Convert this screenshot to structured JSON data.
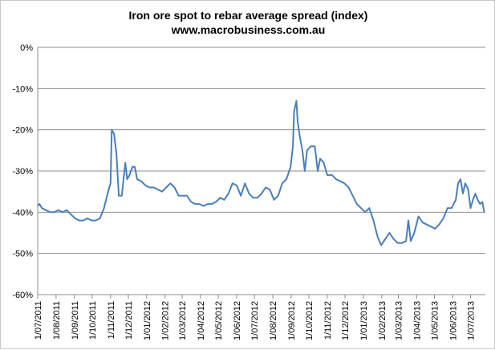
{
  "chart_data": {
    "type": "line",
    "title": "Iron ore spot to rebar average spread (index)",
    "subtitle": "www.macrobusiness.com.au",
    "xlabel": "",
    "ylabel": "",
    "ylim": [
      -0.6,
      0.0
    ],
    "y_ticks": [
      "0%",
      "-10%",
      "-20%",
      "-30%",
      "-40%",
      "-50%",
      "-60%"
    ],
    "x_ticks": [
      "1/07/2011",
      "1/08/2011",
      "1/09/2011",
      "1/10/2011",
      "1/11/2011",
      "1/12/2011",
      "1/01/2012",
      "1/02/2012",
      "1/03/2012",
      "1/04/2012",
      "1/05/2012",
      "1/06/2012",
      "1/07/2012",
      "1/08/2012",
      "1/09/2012",
      "1/10/2012",
      "1/11/2012",
      "1/12/2012",
      "1/01/2013",
      "1/02/2013",
      "1/03/2013",
      "1/04/2013",
      "1/05/2013",
      "1/06/2013",
      "1/07/2013"
    ],
    "grid": "horizontal",
    "legend": "none",
    "line_color": "#4a7ebb",
    "series": [
      {
        "points": [
          [
            "2011-07-01",
            -0.385
          ],
          [
            "2011-07-04",
            -0.38
          ],
          [
            "2011-07-08",
            -0.39
          ],
          [
            "2011-07-15",
            -0.395
          ],
          [
            "2011-07-22",
            -0.4
          ],
          [
            "2011-07-29",
            -0.4
          ],
          [
            "2011-08-05",
            -0.395
          ],
          [
            "2011-08-12",
            -0.4
          ],
          [
            "2011-08-19",
            -0.395
          ],
          [
            "2011-08-26",
            -0.405
          ],
          [
            "2011-09-02",
            -0.415
          ],
          [
            "2011-09-09",
            -0.42
          ],
          [
            "2011-09-16",
            -0.42
          ],
          [
            "2011-09-23",
            -0.415
          ],
          [
            "2011-09-30",
            -0.42
          ],
          [
            "2011-10-07",
            -0.42
          ],
          [
            "2011-10-14",
            -0.415
          ],
          [
            "2011-10-21",
            -0.39
          ],
          [
            "2011-10-26",
            -0.36
          ],
          [
            "2011-10-30",
            -0.34
          ],
          [
            "2011-11-01",
            -0.33
          ],
          [
            "2011-11-03",
            -0.2
          ],
          [
            "2011-11-07",
            -0.21
          ],
          [
            "2011-11-11",
            -0.26
          ],
          [
            "2011-11-15",
            -0.36
          ],
          [
            "2011-11-20",
            -0.36
          ],
          [
            "2011-11-26",
            -0.28
          ],
          [
            "2011-11-29",
            -0.32
          ],
          [
            "2011-12-03",
            -0.31
          ],
          [
            "2011-12-08",
            -0.29
          ],
          [
            "2011-12-12",
            -0.29
          ],
          [
            "2011-12-16",
            -0.32
          ],
          [
            "2011-12-23",
            -0.325
          ],
          [
            "2011-12-30",
            -0.335
          ],
          [
            "2012-01-06",
            -0.34
          ],
          [
            "2012-01-13",
            -0.34
          ],
          [
            "2012-01-20",
            -0.345
          ],
          [
            "2012-01-27",
            -0.35
          ],
          [
            "2012-02-03",
            -0.34
          ],
          [
            "2012-02-10",
            -0.33
          ],
          [
            "2012-02-17",
            -0.34
          ],
          [
            "2012-02-24",
            -0.36
          ],
          [
            "2012-03-02",
            -0.36
          ],
          [
            "2012-03-09",
            -0.36
          ],
          [
            "2012-03-16",
            -0.375
          ],
          [
            "2012-03-23",
            -0.38
          ],
          [
            "2012-03-30",
            -0.38
          ],
          [
            "2012-04-06",
            -0.385
          ],
          [
            "2012-04-13",
            -0.38
          ],
          [
            "2012-04-20",
            -0.38
          ],
          [
            "2012-04-27",
            -0.375
          ],
          [
            "2012-05-04",
            -0.365
          ],
          [
            "2012-05-11",
            -0.37
          ],
          [
            "2012-05-18",
            -0.355
          ],
          [
            "2012-05-25",
            -0.33
          ],
          [
            "2012-06-01",
            -0.335
          ],
          [
            "2012-06-08",
            -0.36
          ],
          [
            "2012-06-15",
            -0.33
          ],
          [
            "2012-06-22",
            -0.355
          ],
          [
            "2012-06-29",
            -0.365
          ],
          [
            "2012-07-06",
            -0.365
          ],
          [
            "2012-07-13",
            -0.355
          ],
          [
            "2012-07-20",
            -0.34
          ],
          [
            "2012-07-27",
            -0.345
          ],
          [
            "2012-08-03",
            -0.37
          ],
          [
            "2012-08-10",
            -0.36
          ],
          [
            "2012-08-17",
            -0.33
          ],
          [
            "2012-08-24",
            -0.32
          ],
          [
            "2012-08-31",
            -0.29
          ],
          [
            "2012-09-04",
            -0.24
          ],
          [
            "2012-09-06",
            -0.155
          ],
          [
            "2012-09-10",
            -0.13
          ],
          [
            "2012-09-12",
            -0.18
          ],
          [
            "2012-09-16",
            -0.22
          ],
          [
            "2012-09-20",
            -0.25
          ],
          [
            "2012-09-24",
            -0.3
          ],
          [
            "2012-09-28",
            -0.25
          ],
          [
            "2012-10-04",
            -0.24
          ],
          [
            "2012-10-11",
            -0.24
          ],
          [
            "2012-10-16",
            -0.3
          ],
          [
            "2012-10-20",
            -0.27
          ],
          [
            "2012-10-26",
            -0.28
          ],
          [
            "2012-11-01",
            -0.31
          ],
          [
            "2012-11-09",
            -0.31
          ],
          [
            "2012-11-16",
            -0.32
          ],
          [
            "2012-11-23",
            -0.325
          ],
          [
            "2012-11-30",
            -0.33
          ],
          [
            "2012-12-07",
            -0.34
          ],
          [
            "2012-12-14",
            -0.36
          ],
          [
            "2012-12-21",
            -0.38
          ],
          [
            "2012-12-28",
            -0.39
          ],
          [
            "2013-01-04",
            -0.4
          ],
          [
            "2013-01-11",
            -0.39
          ],
          [
            "2013-01-18",
            -0.42
          ],
          [
            "2013-01-25",
            -0.46
          ],
          [
            "2013-01-31",
            -0.48
          ],
          [
            "2013-02-07",
            -0.465
          ],
          [
            "2013-02-14",
            -0.45
          ],
          [
            "2013-02-21",
            -0.465
          ],
          [
            "2013-02-28",
            -0.475
          ],
          [
            "2013-03-07",
            -0.475
          ],
          [
            "2013-03-14",
            -0.47
          ],
          [
            "2013-03-18",
            -0.42
          ],
          [
            "2013-03-22",
            -0.47
          ],
          [
            "2013-03-28",
            -0.45
          ],
          [
            "2013-04-04",
            -0.41
          ],
          [
            "2013-04-11",
            -0.425
          ],
          [
            "2013-04-18",
            -0.43
          ],
          [
            "2013-04-25",
            -0.435
          ],
          [
            "2013-05-02",
            -0.44
          ],
          [
            "2013-05-09",
            -0.43
          ],
          [
            "2013-05-16",
            -0.415
          ],
          [
            "2013-05-23",
            -0.39
          ],
          [
            "2013-05-30",
            -0.39
          ],
          [
            "2013-06-06",
            -0.37
          ],
          [
            "2013-06-10",
            -0.33
          ],
          [
            "2013-06-14",
            -0.32
          ],
          [
            "2013-06-18",
            -0.355
          ],
          [
            "2013-06-22",
            -0.33
          ],
          [
            "2013-06-27",
            -0.345
          ],
          [
            "2013-07-01",
            -0.39
          ],
          [
            "2013-07-05",
            -0.37
          ],
          [
            "2013-07-09",
            -0.355
          ],
          [
            "2013-07-13",
            -0.37
          ],
          [
            "2013-07-17",
            -0.38
          ],
          [
            "2013-07-21",
            -0.375
          ],
          [
            "2013-07-24",
            -0.4
          ]
        ]
      }
    ]
  }
}
